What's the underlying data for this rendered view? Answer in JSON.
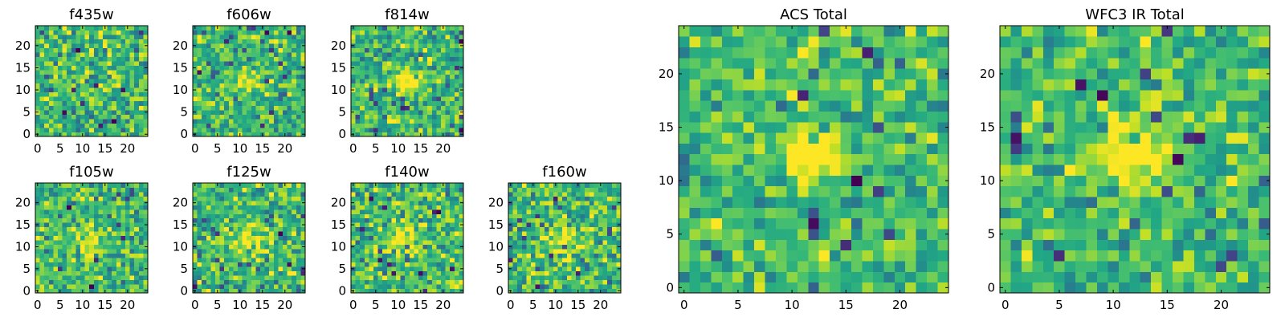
{
  "colors": {
    "colormap": "viridis",
    "frame": "#000000",
    "background": "#ffffff"
  },
  "chart_data": [
    {
      "type": "heatmap",
      "title": "f435w",
      "grid": false,
      "xlim": [
        -0.5,
        24.5
      ],
      "ylim": [
        -0.5,
        24.5
      ],
      "xticks": [
        0,
        5,
        10,
        15,
        20
      ],
      "yticks": [
        0,
        5,
        10,
        15,
        20
      ],
      "noise_amplitude": 0.46,
      "blob_amplitude": 0.0,
      "blob_center": [
        12,
        12
      ],
      "blob_sigma": 2.2,
      "seed": 11
    },
    {
      "type": "heatmap",
      "title": "f606w",
      "grid": false,
      "xlim": [
        -0.5,
        24.5
      ],
      "ylim": [
        -0.5,
        24.5
      ],
      "xticks": [
        0,
        5,
        10,
        15,
        20
      ],
      "yticks": [
        0,
        5,
        10,
        15,
        20
      ],
      "noise_amplitude": 0.42,
      "blob_amplitude": 0.35,
      "blob_center": [
        12,
        12
      ],
      "blob_sigma": 1.8,
      "seed": 23
    },
    {
      "type": "heatmap",
      "title": "f814w",
      "grid": false,
      "xlim": [
        -0.5,
        24.5
      ],
      "ylim": [
        -0.5,
        24.5
      ],
      "xticks": [
        0,
        5,
        10,
        15,
        20
      ],
      "yticks": [
        0,
        5,
        10,
        15,
        20
      ],
      "noise_amplitude": 0.46,
      "blob_amplitude": 0.42,
      "blob_center": [
        12,
        12
      ],
      "blob_sigma": 1.7,
      "seed": 37
    },
    {
      "type": "heatmap",
      "title": "f105w",
      "grid": false,
      "xlim": [
        -0.5,
        24.5
      ],
      "ylim": [
        -0.5,
        24.5
      ],
      "xticks": [
        0,
        5,
        10,
        15,
        20
      ],
      "yticks": [
        0,
        5,
        10,
        15,
        20
      ],
      "noise_amplitude": 0.46,
      "blob_amplitude": 0.3,
      "blob_center": [
        12,
        12
      ],
      "blob_sigma": 2.4,
      "seed": 41
    },
    {
      "type": "heatmap",
      "title": "f125w",
      "grid": false,
      "xlim": [
        -0.5,
        24.5
      ],
      "ylim": [
        -0.5,
        24.5
      ],
      "xticks": [
        0,
        5,
        10,
        15,
        20
      ],
      "yticks": [
        0,
        5,
        10,
        15,
        20
      ],
      "noise_amplitude": 0.46,
      "blob_amplitude": 0.3,
      "blob_center": [
        12,
        12
      ],
      "blob_sigma": 2.2,
      "seed": 53
    },
    {
      "type": "heatmap",
      "title": "f140w",
      "grid": false,
      "xlim": [
        -0.5,
        24.5
      ],
      "ylim": [
        -0.5,
        24.5
      ],
      "xticks": [
        0,
        5,
        10,
        15,
        20
      ],
      "yticks": [
        0,
        5,
        10,
        15,
        20
      ],
      "noise_amplitude": 0.5,
      "blob_amplitude": 0.35,
      "blob_center": [
        12,
        12
      ],
      "blob_sigma": 2.2,
      "seed": 67
    },
    {
      "type": "heatmap",
      "title": "f160w",
      "grid": false,
      "xlim": [
        -0.5,
        24.5
      ],
      "ylim": [
        -0.5,
        24.5
      ],
      "xticks": [
        0,
        5,
        10,
        15,
        20
      ],
      "yticks": [
        0,
        5,
        10,
        15,
        20
      ],
      "noise_amplitude": 0.5,
      "blob_amplitude": 0.4,
      "blob_center": [
        12,
        12
      ],
      "blob_sigma": 2.0,
      "seed": 79
    },
    {
      "type": "heatmap",
      "title": "ACS Total",
      "grid": false,
      "xlim": [
        -0.5,
        24.5
      ],
      "ylim": [
        -0.5,
        24.5
      ],
      "xticks": [
        0,
        5,
        10,
        15,
        20
      ],
      "yticks": [
        0,
        5,
        10,
        15,
        20
      ],
      "noise_amplitude": 0.4,
      "blob_amplitude": 0.5,
      "blob_center": [
        12,
        12.5
      ],
      "blob_sigma": 1.7,
      "seed": 83
    },
    {
      "type": "heatmap",
      "title": "WFC3 IR Total",
      "grid": false,
      "xlim": [
        -0.5,
        24.5
      ],
      "ylim": [
        -0.5,
        24.5
      ],
      "xticks": [
        0,
        5,
        10,
        15,
        20
      ],
      "yticks": [
        0,
        5,
        10,
        15,
        20
      ],
      "noise_amplitude": 0.4,
      "blob_amplitude": 0.55,
      "blob_center": [
        12,
        12.5
      ],
      "blob_sigma": 2.4,
      "seed": 97
    }
  ]
}
